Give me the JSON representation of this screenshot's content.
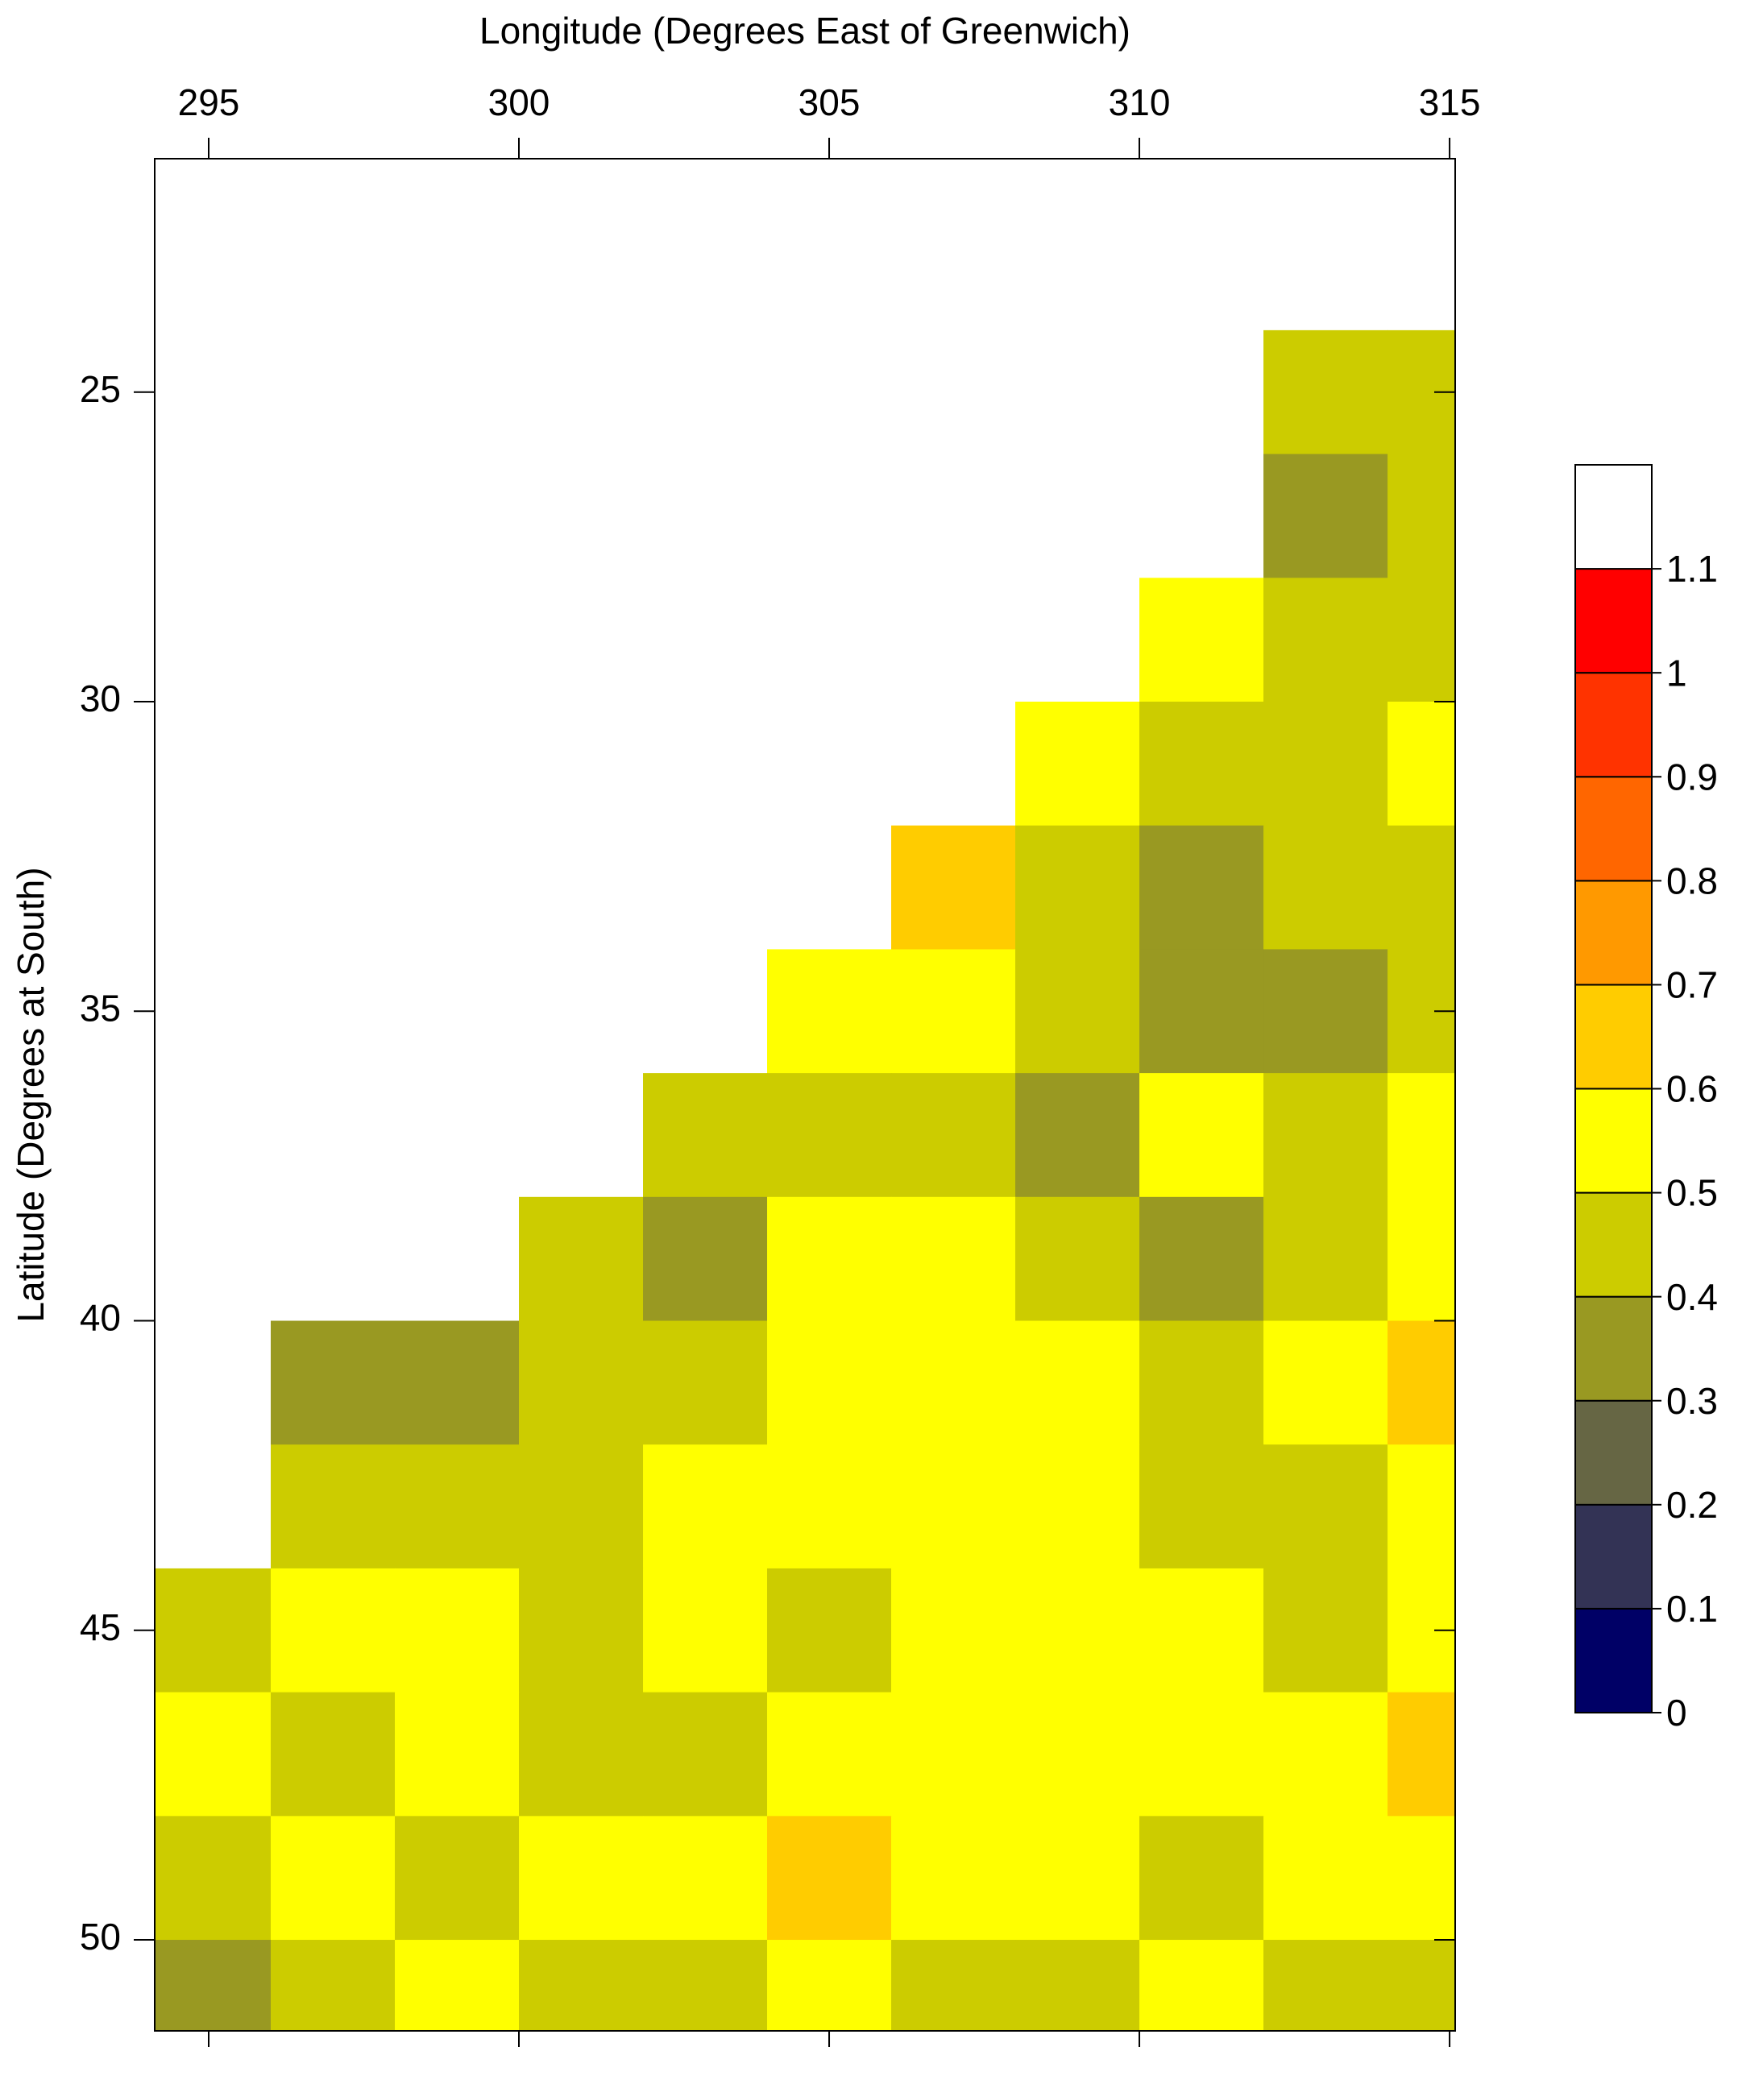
{
  "chart_data": {
    "type": "contour",
    "xlabel": "Longitude (Degrees East of Greenwich)",
    "ylabel": "Latitude (Degrees at South)",
    "xlim": [
      294.13,
      315.09
    ],
    "ylim": [
      51.47,
      21.23
    ],
    "xticks": [
      295,
      300,
      305,
      310,
      315
    ],
    "yticks": [
      25,
      30,
      35,
      40,
      45,
      50
    ],
    "x": [
      295,
      297,
      299,
      301,
      303,
      305,
      307,
      309,
      311,
      313,
      315
    ],
    "y": [
      23,
      25,
      27,
      29,
      31,
      33,
      35,
      37,
      39,
      41,
      43,
      45,
      47,
      49,
      51
    ],
    "z": [
      [
        null,
        null,
        null,
        null,
        null,
        null,
        null,
        null,
        null,
        null,
        null
      ],
      [
        null,
        null,
        null,
        null,
        null,
        null,
        null,
        null,
        null,
        0.45,
        0.42
      ],
      [
        null,
        null,
        null,
        null,
        null,
        null,
        null,
        null,
        null,
        0.38,
        0.45
      ],
      [
        null,
        null,
        null,
        null,
        null,
        null,
        null,
        null,
        0.55,
        0.45,
        0.48
      ],
      [
        null,
        null,
        null,
        null,
        null,
        null,
        null,
        0.52,
        0.48,
        0.42,
        0.55
      ],
      [
        null,
        null,
        null,
        null,
        null,
        null,
        0.62,
        0.45,
        0.35,
        0.43,
        0.48
      ],
      [
        null,
        null,
        null,
        null,
        null,
        0.5,
        0.55,
        0.42,
        0.36,
        0.33,
        0.45
      ],
      [
        null,
        null,
        null,
        null,
        0.43,
        0.47,
        0.45,
        0.38,
        0.52,
        0.44,
        0.55
      ],
      [
        null,
        null,
        null,
        0.45,
        0.38,
        0.52,
        0.56,
        0.48,
        0.35,
        0.45,
        0.52
      ],
      [
        null,
        0.38,
        0.35,
        0.42,
        0.47,
        0.53,
        0.58,
        0.5,
        0.45,
        0.55,
        0.62
      ],
      [
        null,
        0.42,
        0.45,
        0.48,
        0.52,
        0.55,
        0.5,
        0.57,
        0.48,
        0.46,
        0.53
      ],
      [
        0.45,
        0.5,
        0.53,
        0.46,
        0.52,
        0.48,
        0.55,
        0.51,
        0.55,
        0.48,
        0.56
      ],
      [
        0.55,
        0.47,
        0.52,
        0.45,
        0.49,
        0.53,
        0.56,
        0.52,
        0.58,
        0.55,
        0.6
      ],
      [
        0.42,
        0.5,
        0.46,
        0.55,
        0.58,
        0.6,
        0.54,
        0.5,
        0.47,
        0.52,
        0.55
      ],
      [
        0.38,
        0.45,
        0.5,
        0.43,
        0.48,
        0.52,
        0.47,
        0.45,
        0.5,
        0.44,
        0.4
      ]
    ],
    "levels": [
      0,
      0.1,
      0.2,
      0.3,
      0.4,
      0.5,
      0.6,
      0.7,
      0.8,
      0.9,
      1,
      1.1
    ],
    "colors": [
      "#000066",
      "#333355",
      "#666644",
      "#999922",
      "#cccc00",
      "#ffff00",
      "#ffcc00",
      "#ff9900",
      "#ff6600",
      "#ff3300",
      "#ff0000",
      "#ffffff"
    ]
  }
}
